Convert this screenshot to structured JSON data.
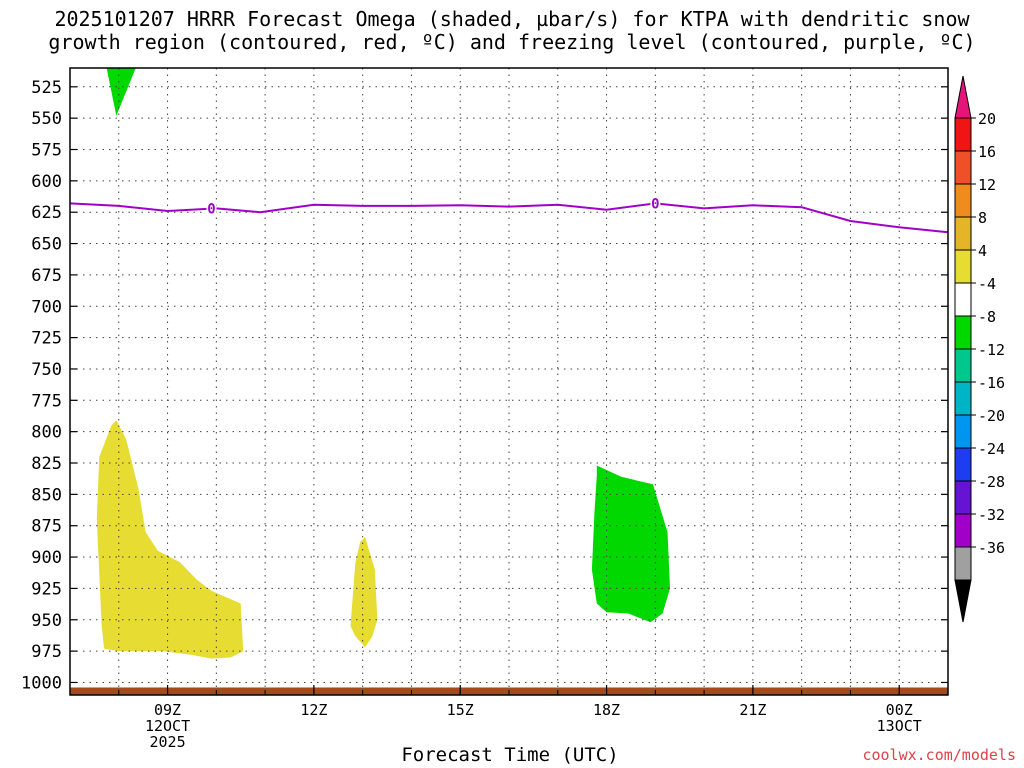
{
  "title_line1": "2025101207 HRRR Forecast Omega (shaded, µbar/s) for KTPA with dendritic snow",
  "title_line2": "growth region (contoured, red, ºC) and freezing level (contoured, purple, ºC)",
  "credit": "coolwx.com/models",
  "chart_data": {
    "type": "contour",
    "xlabel": "Forecast Time (UTC)",
    "ylabel": "",
    "x_start_hour": 7,
    "x_end_hour": 25,
    "ylim": [
      1010,
      510
    ],
    "y_ticks": [
      525,
      550,
      575,
      600,
      625,
      650,
      675,
      700,
      725,
      750,
      775,
      800,
      825,
      850,
      875,
      900,
      925,
      950,
      975,
      1000
    ],
    "x_ticks": [
      {
        "hour": 9,
        "lines": [
          "09Z",
          "12OCT",
          "2025"
        ]
      },
      {
        "hour": 12,
        "lines": [
          "12Z"
        ]
      },
      {
        "hour": 15,
        "lines": [
          "15Z"
        ]
      },
      {
        "hour": 18,
        "lines": [
          "18Z"
        ]
      },
      {
        "hour": 21,
        "lines": [
          "21Z"
        ]
      },
      {
        "hour": 24,
        "lines": [
          "00Z",
          "13OCT"
        ]
      }
    ],
    "grid": true,
    "freezing_level": {
      "label": "0",
      "color": "#a000c8",
      "label_at_hours": [
        9.9,
        19.0
      ],
      "points": [
        [
          7,
          618
        ],
        [
          8,
          620
        ],
        [
          9,
          624
        ],
        [
          10,
          622
        ],
        [
          10.9,
          625
        ],
        [
          12,
          619
        ],
        [
          13,
          620
        ],
        [
          14,
          620
        ],
        [
          15,
          619.5
        ],
        [
          16,
          620.5
        ],
        [
          17,
          619
        ],
        [
          18,
          623
        ],
        [
          19,
          618
        ],
        [
          20,
          622
        ],
        [
          21,
          619.5
        ],
        [
          22,
          621
        ],
        [
          23,
          632
        ],
        [
          24,
          637
        ],
        [
          25,
          641
        ]
      ]
    },
    "omega_regions": [
      {
        "value_class": "-8 to -4",
        "color": "#00d800",
        "points": [
          [
            7.75,
            510
          ],
          [
            8.35,
            510
          ],
          [
            7.95,
            548
          ]
        ]
      },
      {
        "value_class": "4 to 8",
        "color": "#e6dc32",
        "points": [
          [
            7.95,
            791
          ],
          [
            8.15,
            806
          ],
          [
            8.4,
            845
          ],
          [
            8.55,
            880
          ],
          [
            8.8,
            895
          ],
          [
            9.25,
            904
          ],
          [
            9.6,
            918
          ],
          [
            9.9,
            927
          ],
          [
            10.5,
            937
          ],
          [
            10.55,
            975
          ],
          [
            10.3,
            980
          ],
          [
            9.9,
            981
          ],
          [
            9.5,
            978
          ],
          [
            8.9,
            975
          ],
          [
            8.0,
            975
          ],
          [
            7.7,
            973
          ],
          [
            7.65,
            955
          ],
          [
            7.55,
            870
          ],
          [
            7.6,
            820
          ],
          [
            7.85,
            795
          ]
        ]
      },
      {
        "value_class": "4 to 8",
        "color": "#e6dc32",
        "points": [
          [
            13.05,
            884
          ],
          [
            13.25,
            910
          ],
          [
            13.3,
            950
          ],
          [
            13.2,
            963
          ],
          [
            13.05,
            972
          ],
          [
            12.85,
            963
          ],
          [
            12.75,
            955
          ],
          [
            12.8,
            930
          ],
          [
            12.85,
            905
          ],
          [
            12.95,
            888
          ]
        ]
      },
      {
        "value_class": "-8 to -4",
        "color": "#00d800",
        "points": [
          [
            17.8,
            827
          ],
          [
            18.3,
            836
          ],
          [
            18.95,
            842
          ],
          [
            19.25,
            880
          ],
          [
            19.3,
            925
          ],
          [
            19.15,
            945
          ],
          [
            18.9,
            952
          ],
          [
            18.45,
            945
          ],
          [
            18.0,
            944
          ],
          [
            17.8,
            937
          ],
          [
            17.7,
            910
          ],
          [
            17.75,
            865
          ],
          [
            17.8,
            835
          ]
        ]
      }
    ],
    "surface_band": {
      "color": "#a04c1e",
      "top": 1004,
      "bottom": 1010
    },
    "colorbar": {
      "labels": [
        "20",
        "16",
        "12",
        "8",
        "4",
        "-4",
        "-8",
        "-12",
        "-16",
        "-20",
        "-24",
        "-28",
        "-32",
        "-36"
      ],
      "colors": [
        "#f01414",
        "#f05028",
        "#f08c1e",
        "#e6b428",
        "#e6dc32",
        "#ffffff",
        "#00d800",
        "#00c88c",
        "#00b4c8",
        "#0096f0",
        "#1e3cf0",
        "#6414d2",
        "#a000c8",
        "#a0a0a0"
      ],
      "over_color": "#e61478",
      "under_color": "#000000"
    }
  }
}
